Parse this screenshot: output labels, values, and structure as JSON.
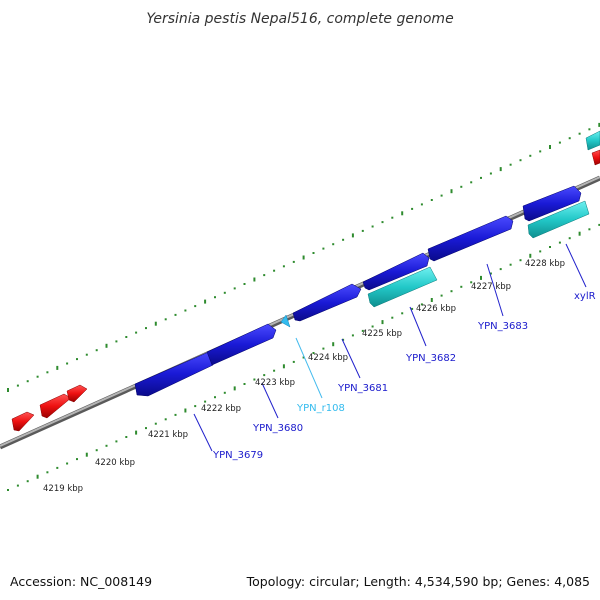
{
  "title": "Yersinia pestis Nepal516, complete genome",
  "footer": {
    "accession": "Accession: NC_008149",
    "summary": "Topology: circular; Length: 4,534,590 bp; Genes: 4,085"
  },
  "kbp_ticks": [
    "4219 kbp",
    "4220 kbp",
    "4221 kbp",
    "4222 kbp",
    "4223 kbp",
    "4224 kbp",
    "4225 kbp",
    "4226 kbp",
    "4227 kbp",
    "4228 kbp"
  ],
  "gene_labels": [
    "YPN_3679",
    "YPN_3680",
    "YPN_r108",
    "YPN_3681",
    "YPN_3682",
    "YPN_3683",
    "xylR"
  ],
  "colors": {
    "forward_gene": "#1a1ad6",
    "reverse_gene_cyan": "#22c8c8",
    "rna_gene": "#33bbee",
    "red_gene": "#ee1111",
    "backbone": "#8c8c8c",
    "tick_marks": "#2e8b2e",
    "label_blue": "#1a1acc",
    "label_cyan": "#33bbee",
    "leader_blue": "#2222cc",
    "leader_cyan": "#44bbee"
  }
}
